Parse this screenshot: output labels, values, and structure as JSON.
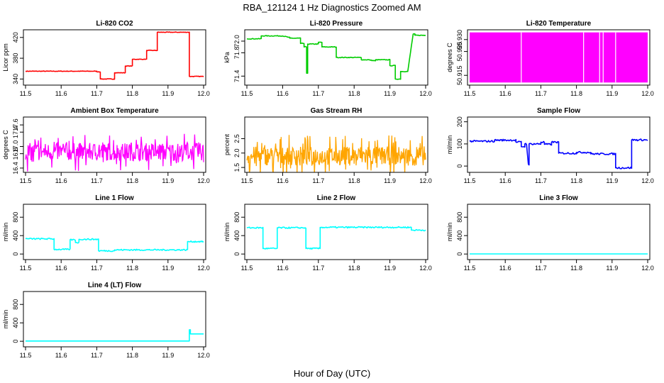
{
  "figure": {
    "title": "RBA_121124  1 Hz Diagnostics Zoomed AM",
    "xlabel": "Hour of Day (UTC)"
  },
  "chart_data": [
    {
      "type": "line",
      "title": "Li-820 CO2",
      "ylabel": "Licor ppm",
      "color": "#ff0000",
      "xlim": [
        11.5,
        12.0
      ],
      "ylim": [
        331,
        432
      ],
      "xticks": [
        "11.5",
        "11.6",
        "11.7",
        "11.8",
        "11.9",
        "12.0"
      ],
      "yticks": [
        {
          "v": 340,
          "label": "340"
        },
        {
          "v": 380,
          "label": "380"
        },
        {
          "v": 420,
          "label": "420"
        }
      ],
      "noise": 0.5,
      "points": [
        [
          11.5,
          355
        ],
        [
          11.7,
          355
        ],
        [
          11.7,
          354
        ],
        [
          11.71,
          354
        ],
        [
          11.71,
          340
        ],
        [
          11.75,
          340
        ],
        [
          11.75,
          352
        ],
        [
          11.78,
          352
        ],
        [
          11.78,
          365
        ],
        [
          11.8,
          365
        ],
        [
          11.8,
          378
        ],
        [
          11.84,
          378
        ],
        [
          11.84,
          395
        ],
        [
          11.87,
          395
        ],
        [
          11.87,
          430
        ],
        [
          11.96,
          430
        ],
        [
          11.96,
          345
        ],
        [
          12.0,
          345
        ]
      ]
    },
    {
      "type": "line",
      "title": "Li-820 Pressure",
      "ylabel": "kPa",
      "color": "#00cc00",
      "xlim": [
        11.5,
        12.0
      ],
      "ylim": [
        71.27,
        72.17
      ],
      "xticks": [
        "11.5",
        "11.6",
        "11.7",
        "11.8",
        "11.9",
        "12.0"
      ],
      "yticks": [
        {
          "v": 71.4,
          "label": "71.4"
        },
        {
          "v": 71.8,
          "label": "71.8"
        },
        {
          "v": 72.0,
          "label": "72.0"
        }
      ],
      "noise": 0.006,
      "points": [
        [
          11.5,
          72.04
        ],
        [
          11.54,
          72.04
        ],
        [
          11.54,
          72.09
        ],
        [
          11.6,
          72.09
        ],
        [
          11.62,
          72.06
        ],
        [
          11.62,
          72.05
        ],
        [
          11.65,
          72.05
        ],
        [
          11.65,
          71.96
        ],
        [
          11.66,
          71.96
        ],
        [
          11.66,
          71.9
        ],
        [
          11.667,
          71.9
        ],
        [
          11.667,
          71.45
        ],
        [
          11.67,
          71.45
        ],
        [
          11.67,
          71.95
        ],
        [
          11.7,
          71.95
        ],
        [
          11.7,
          71.98
        ],
        [
          11.71,
          71.98
        ],
        [
          11.71,
          71.9
        ],
        [
          11.75,
          71.9
        ],
        [
          11.75,
          71.72
        ],
        [
          11.82,
          71.72
        ],
        [
          11.82,
          71.68
        ],
        [
          11.84,
          71.68
        ],
        [
          11.86,
          71.66
        ],
        [
          11.86,
          71.68
        ],
        [
          11.9,
          71.68
        ],
        [
          11.9,
          71.58
        ],
        [
          11.915,
          71.58
        ],
        [
          11.915,
          71.35
        ],
        [
          11.93,
          71.35
        ],
        [
          11.93,
          71.48
        ],
        [
          11.95,
          71.48
        ],
        [
          11.965,
          72.12
        ],
        [
          11.97,
          72.12
        ],
        [
          11.97,
          72.1
        ],
        [
          12.0,
          72.1
        ]
      ]
    },
    {
      "type": "line",
      "title": "Li-820 Temperature",
      "ylabel": "degrees C",
      "color": "#ff00ff",
      "xlim": [
        11.5,
        12.0
      ],
      "ylim": [
        50.9115,
        50.9335
      ],
      "xticks": [
        "11.5",
        "11.6",
        "11.7",
        "11.8",
        "11.9",
        "12.0"
      ],
      "yticks": [
        {
          "v": 50.915,
          "label": "50.915"
        },
        {
          "v": 50.925,
          "label": "50.925"
        },
        {
          "v": 50.93,
          "label": "50.930"
        }
      ],
      "band": [
        50.912,
        50.933
      ],
      "gaps": [
        11.645,
        11.82,
        11.865,
        11.875,
        11.91
      ]
    },
    {
      "type": "line",
      "title": "Ambient Box Temperature",
      "ylabel": "degrees C",
      "color": "#ff00ff",
      "xlim": [
        11.5,
        12.0
      ],
      "ylim": [
        16.32,
        17.78
      ],
      "xticks": [
        "11.5",
        "11.6",
        "11.7",
        "11.8",
        "11.9",
        "12.0"
      ],
      "yticks": [
        {
          "v": 16.4,
          "label": "16.4"
        },
        {
          "v": 16.8,
          "label": "16.8"
        },
        {
          "v": 17.0,
          "label": "17.0"
        },
        {
          "v": 17.4,
          "label": "17.4"
        },
        {
          "v": 17.6,
          "label": "17.6"
        }
      ],
      "base": 16.85,
      "spread": 0.9
    },
    {
      "type": "line",
      "title": "Gas Stream RH",
      "ylabel": "percent",
      "color": "#ffa500",
      "xlim": [
        11.5,
        12.0
      ],
      "ylim": [
        1.38,
        3.2
      ],
      "xticks": [
        "11.5",
        "11.6",
        "11.7",
        "11.8",
        "11.9",
        "12.0"
      ],
      "yticks": [
        {
          "v": 1.5,
          "label": "1.5"
        },
        {
          "v": 2.0,
          "label": "2.0"
        },
        {
          "v": 2.5,
          "label": "2.5"
        }
      ],
      "base": 1.9,
      "spread": 1.2
    },
    {
      "type": "line",
      "title": "Sample Flow",
      "ylabel": "ml/min",
      "color": "#0000ff",
      "xlim": [
        11.5,
        12.0
      ],
      "ylim": [
        -22,
        215
      ],
      "xticks": [
        "11.5",
        "11.6",
        "11.7",
        "11.8",
        "11.9",
        "12.0"
      ],
      "yticks": [
        {
          "v": 0,
          "label": "0"
        },
        {
          "v": 100,
          "label": "100"
        },
        {
          "v": 200,
          "label": "200"
        }
      ],
      "noise": 4,
      "points": [
        [
          11.5,
          112
        ],
        [
          11.57,
          112
        ],
        [
          11.57,
          117
        ],
        [
          11.63,
          117
        ],
        [
          11.63,
          108
        ],
        [
          11.645,
          108
        ],
        [
          11.645,
          88
        ],
        [
          11.655,
          88
        ],
        [
          11.655,
          100
        ],
        [
          11.66,
          100
        ],
        [
          11.665,
          5
        ],
        [
          11.667,
          5
        ],
        [
          11.667,
          100
        ],
        [
          11.7,
          100
        ],
        [
          11.7,
          108
        ],
        [
          11.71,
          108
        ],
        [
          11.71,
          98
        ],
        [
          11.73,
          98
        ],
        [
          11.73,
          108
        ],
        [
          11.75,
          108
        ],
        [
          11.75,
          58
        ],
        [
          11.8,
          58
        ],
        [
          11.8,
          62
        ],
        [
          11.84,
          62
        ],
        [
          11.84,
          55
        ],
        [
          11.91,
          55
        ],
        [
          11.91,
          -8
        ],
        [
          11.955,
          -8
        ],
        [
          11.955,
          118
        ],
        [
          12.0,
          118
        ]
      ]
    },
    {
      "type": "line",
      "title": "Line 1 Flow",
      "ylabel": "ml/min",
      "color": "#00ffff",
      "xlim": [
        11.5,
        12.0
      ],
      "ylim": [
        -90,
        1050
      ],
      "xticks": [
        "11.5",
        "11.6",
        "11.7",
        "11.8",
        "11.9",
        "12.0"
      ],
      "yticks": [
        {
          "v": 0,
          "label": "0"
        },
        {
          "v": 400,
          "label": "400"
        },
        {
          "v": 800,
          "label": "800"
        }
      ],
      "noise": 15,
      "points": [
        [
          11.5,
          330
        ],
        [
          11.58,
          330
        ],
        [
          11.58,
          100
        ],
        [
          11.625,
          100
        ],
        [
          11.625,
          310
        ],
        [
          11.64,
          310
        ],
        [
          11.64,
          250
        ],
        [
          11.65,
          250
        ],
        [
          11.65,
          320
        ],
        [
          11.705,
          320
        ],
        [
          11.705,
          70
        ],
        [
          11.75,
          70
        ],
        [
          11.75,
          90
        ],
        [
          11.955,
          90
        ],
        [
          11.955,
          270
        ],
        [
          12.0,
          270
        ]
      ]
    },
    {
      "type": "line",
      "title": "Line 2 Flow",
      "ylabel": "ml/min",
      "color": "#00ffff",
      "xlim": [
        11.5,
        12.0
      ],
      "ylim": [
        -90,
        1050
      ],
      "xticks": [
        "11.5",
        "11.6",
        "11.7",
        "11.8",
        "11.9",
        "12.0"
      ],
      "yticks": [
        {
          "v": 0,
          "label": "0"
        },
        {
          "v": 400,
          "label": "400"
        },
        {
          "v": 800,
          "label": "800"
        }
      ],
      "noise": 15,
      "points": [
        [
          11.5,
          570
        ],
        [
          11.545,
          570
        ],
        [
          11.545,
          120
        ],
        [
          11.585,
          120
        ],
        [
          11.585,
          570
        ],
        [
          11.665,
          570
        ],
        [
          11.665,
          120
        ],
        [
          11.705,
          120
        ],
        [
          11.705,
          580
        ],
        [
          11.96,
          580
        ],
        [
          11.96,
          520
        ],
        [
          12.0,
          520
        ]
      ]
    },
    {
      "type": "line",
      "title": "Line 3 Flow",
      "ylabel": "ml/min",
      "color": "#00ffff",
      "xlim": [
        11.5,
        12.0
      ],
      "ylim": [
        -90,
        1050
      ],
      "xticks": [
        "11.5",
        "11.6",
        "11.7",
        "11.8",
        "11.9",
        "12.0"
      ],
      "yticks": [
        {
          "v": 0,
          "label": "0"
        },
        {
          "v": 400,
          "label": "400"
        },
        {
          "v": 800,
          "label": "800"
        }
      ],
      "noise": 0,
      "points": [
        [
          11.5,
          2
        ],
        [
          12.0,
          2
        ]
      ]
    },
    {
      "type": "line",
      "title": "Line 4 (LT) Flow",
      "ylabel": "ml/min",
      "color": "#00ffff",
      "xlim": [
        11.5,
        12.0
      ],
      "ylim": [
        -90,
        1050
      ],
      "xticks": [
        "11.5",
        "11.6",
        "11.7",
        "11.8",
        "11.9",
        "12.0"
      ],
      "yticks": [
        {
          "v": 0,
          "label": "0"
        },
        {
          "v": 400,
          "label": "400"
        },
        {
          "v": 800,
          "label": "800"
        }
      ],
      "noise": 0,
      "points": [
        [
          11.5,
          5
        ],
        [
          11.96,
          5
        ],
        [
          11.96,
          250
        ],
        [
          11.963,
          250
        ],
        [
          11.963,
          160
        ],
        [
          12.0,
          160
        ]
      ]
    }
  ]
}
